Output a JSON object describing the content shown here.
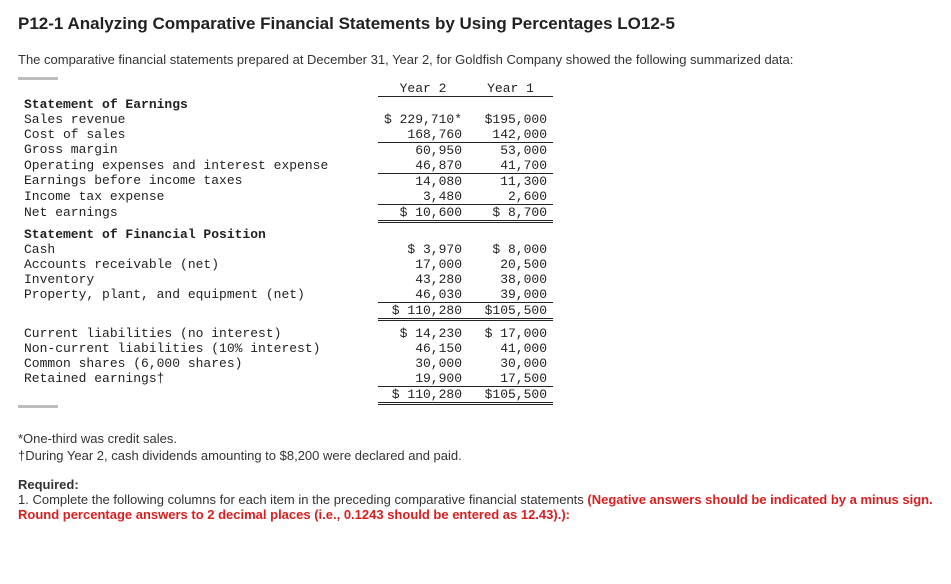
{
  "heading": "P12-1 Analyzing Comparative Financial Statements by Using Percentages LO12-5",
  "intro": "The comparative financial statements prepared at December 31, Year 2, for Goldfish Company showed the following summarized data:",
  "table": {
    "col_headers": {
      "y2": "Year 2",
      "y1": "Year 1"
    },
    "earnings_title": "Statement of Earnings",
    "earnings": [
      {
        "label": "Sales revenue",
        "y2": "$ 229,710*",
        "y1": "$195,000"
      },
      {
        "label": "Cost of sales",
        "y2": "168,760",
        "y1": "142,000",
        "underline": true
      },
      {
        "label": "Gross margin",
        "y2": "60,950",
        "y1": "53,000"
      },
      {
        "label": "Operating expenses and interest expense",
        "y2": "46,870",
        "y1": "41,700",
        "underline": true
      },
      {
        "label": "Earnings before income taxes",
        "y2": "14,080",
        "y1": "11,300"
      },
      {
        "label": "Income tax expense",
        "y2": "3,480",
        "y1": "2,600",
        "underline": true
      }
    ],
    "net_earnings": {
      "label": "Net earnings",
      "y2": "$  10,600",
      "y1": "$   8,700"
    },
    "position_title": "Statement of Financial Position",
    "assets": [
      {
        "label": "Cash",
        "y2": "$   3,970",
        "y1": "$   8,000"
      },
      {
        "label": "Accounts receivable (net)",
        "y2": "17,000",
        "y1": "20,500"
      },
      {
        "label": "Inventory",
        "y2": "43,280",
        "y1": "38,000"
      },
      {
        "label": "Property, plant, and equipment (net)",
        "y2": "46,030",
        "y1": "39,000",
        "underline": true
      }
    ],
    "assets_total": {
      "y2": "$ 110,280",
      "y1": "$105,500"
    },
    "liab": [
      {
        "label": "Current liabilities (no interest)",
        "y2": "$  14,230",
        "y1": "$  17,000"
      },
      {
        "label": "Non-current liabilities (10% interest)",
        "y2": "46,150",
        "y1": "41,000"
      },
      {
        "label": "Common shares (6,000 shares)",
        "y2": "30,000",
        "y1": "30,000"
      },
      {
        "label": "Retained earnings†",
        "y2": "19,900",
        "y1": "17,500",
        "underline": true
      }
    ],
    "le_total": {
      "y2": "$ 110,280",
      "y1": "$105,500"
    }
  },
  "footnotes": {
    "f1": "*One-third was credit sales.",
    "f2": "†During Year 2, cash dividends amounting to $8,200 were declared and paid."
  },
  "required": {
    "title": "Required:",
    "text": "1. Complete the following columns for each item in the preceding comparative financial statements ",
    "red": "(Negative answers should be indicated by a minus sign. Round percentage answers to 2 decimal places (i.e., 0.1243 should be entered as 12.43).):"
  }
}
